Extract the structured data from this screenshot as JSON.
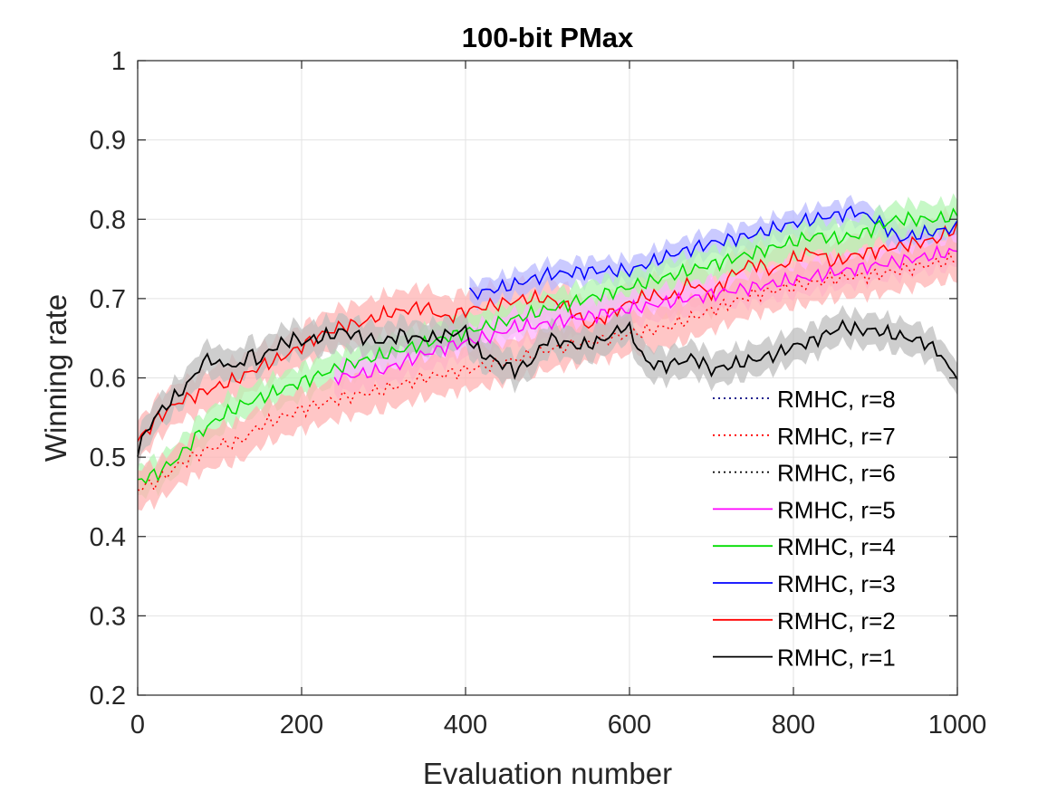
{
  "chart_data": {
    "type": "line",
    "title": "100-bit PMax",
    "xlabel": "Evaluation number",
    "ylabel": "Winning rate",
    "xlim": [
      0,
      1000
    ],
    "ylim": [
      0.2,
      1
    ],
    "xticks": [
      0,
      200,
      400,
      600,
      800,
      1000
    ],
    "yticks": [
      0.2,
      0.3,
      0.4,
      0.5,
      0.6,
      0.7,
      0.8,
      0.9,
      1
    ],
    "xtick_labels": [
      "0",
      "200",
      "400",
      "600",
      "800",
      "1000"
    ],
    "ytick_labels": [
      "0.2",
      "0.3",
      "0.4",
      "0.5",
      "0.6",
      "0.7",
      "0.8",
      "0.9",
      "1"
    ],
    "grid": true,
    "legend_position": "bottom-right",
    "series": [
      {
        "name": "RMHC, r=2",
        "color": "#ff0000",
        "band_color": "#ffb3b3",
        "style": "solid",
        "x": [
          0,
          25,
          50,
          75,
          100,
          125,
          150,
          175,
          200,
          225,
          250,
          275,
          300,
          325,
          350,
          375,
          400,
          425,
          450,
          475,
          500,
          525,
          550,
          575,
          600,
          625,
          650,
          675,
          700,
          725,
          750,
          775,
          800,
          825,
          850,
          875,
          900,
          925,
          950,
          975,
          1000
        ],
        "y": [
          0.52,
          0.55,
          0.57,
          0.58,
          0.59,
          0.6,
          0.615,
          0.625,
          0.64,
          0.655,
          0.665,
          0.67,
          0.68,
          0.685,
          0.69,
          0.675,
          0.685,
          0.69,
          0.695,
          0.7,
          0.7,
          0.69,
          0.665,
          0.68,
          0.695,
          0.705,
          0.7,
          0.72,
          0.705,
          0.73,
          0.745,
          0.735,
          0.75,
          0.76,
          0.745,
          0.755,
          0.76,
          0.765,
          0.77,
          0.775,
          0.79
        ],
        "band": 0.025
      },
      {
        "name": "RMHC, r=3",
        "color": "#0000ff",
        "band_color": "#b8b8ff",
        "style": "solid",
        "x": [
          405,
          450,
          500,
          550,
          600,
          650,
          700,
          750,
          800,
          850,
          875,
          900,
          930,
          950,
          1000
        ],
        "y": [
          0.705,
          0.715,
          0.73,
          0.735,
          0.735,
          0.755,
          0.77,
          0.78,
          0.795,
          0.805,
          0.81,
          0.8,
          0.775,
          0.78,
          0.79
        ],
        "band": 0.015
      },
      {
        "name": "RMHC, r=4",
        "color": "#00dd00",
        "band_color": "#b3f5b3",
        "style": "solid",
        "x": [
          0,
          25,
          50,
          75,
          100,
          125,
          150,
          175,
          200,
          225,
          250,
          830,
          850,
          880,
          900,
          925,
          950,
          975,
          1000
        ],
        "y": [
          0.47,
          0.48,
          0.5,
          0.53,
          0.55,
          0.565,
          0.575,
          0.585,
          0.595,
          0.605,
          0.615,
          0.78,
          0.775,
          0.78,
          0.79,
          0.8,
          0.8,
          0.8,
          0.805
        ],
        "band": 0.02
      },
      {
        "name": "RMHC, r=5",
        "color": "#ff00ff",
        "band_color": "#ffb3ff",
        "style": "solid",
        "x": [
          240,
          275,
          300,
          325,
          350,
          380,
          440,
          460,
          480,
          1000
        ],
        "y": [
          0.6,
          0.605,
          0.61,
          0.62,
          0.63,
          0.64,
          0.655,
          0.665,
          0.665,
          0.76
        ],
        "band": 0.02
      },
      {
        "name": "RMHC, r=7",
        "color": "#ff0000",
        "band_color": "#ffb3b3",
        "style": "dotted",
        "x": [
          0,
          25,
          50,
          75,
          100,
          125,
          150,
          200,
          250,
          300,
          350,
          400,
          450,
          500,
          550,
          600,
          650,
          700,
          750,
          800,
          850,
          900,
          950,
          1000
        ],
        "y": [
          0.46,
          0.47,
          0.49,
          0.505,
          0.515,
          0.52,
          0.54,
          0.56,
          0.575,
          0.585,
          0.6,
          0.61,
          0.62,
          0.635,
          0.645,
          0.655,
          0.665,
          0.685,
          0.705,
          0.715,
          0.725,
          0.73,
          0.74,
          0.75
        ],
        "band": 0.025
      },
      {
        "name": "RMHC, r=1",
        "color": "#000000",
        "band_color": "#bdbdbd",
        "style": "solid",
        "x": [
          0,
          10,
          20,
          30,
          40,
          50,
          60,
          70,
          80,
          90,
          100,
          110,
          120,
          130,
          140,
          150,
          160,
          170,
          180,
          190,
          200,
          220,
          240,
          250,
          260,
          280,
          300,
          320,
          340,
          360,
          380,
          400,
          410,
          420,
          430,
          440,
          450,
          460,
          480,
          500,
          520,
          540,
          560,
          580,
          590,
          600,
          610,
          620,
          640,
          660,
          680,
          700,
          720,
          740,
          760,
          780,
          800,
          820,
          840,
          860,
          880,
          900,
          920,
          940,
          960,
          980,
          990,
          1000
        ],
        "y": [
          0.51,
          0.53,
          0.55,
          0.56,
          0.57,
          0.58,
          0.59,
          0.605,
          0.62,
          0.625,
          0.615,
          0.62,
          0.61,
          0.625,
          0.63,
          0.62,
          0.635,
          0.64,
          0.645,
          0.65,
          0.645,
          0.65,
          0.655,
          0.66,
          0.655,
          0.65,
          0.645,
          0.655,
          0.65,
          0.65,
          0.655,
          0.66,
          0.64,
          0.63,
          0.625,
          0.62,
          0.615,
          0.61,
          0.62,
          0.65,
          0.645,
          0.64,
          0.645,
          0.655,
          0.665,
          0.66,
          0.64,
          0.62,
          0.615,
          0.62,
          0.625,
          0.61,
          0.615,
          0.62,
          0.625,
          0.63,
          0.64,
          0.645,
          0.655,
          0.665,
          0.66,
          0.66,
          0.655,
          0.65,
          0.645,
          0.63,
          0.61,
          0.605
        ],
        "band": 0.02
      }
    ],
    "legend": [
      {
        "label": "RMHC, r=8",
        "color": "#00007f",
        "style": "dotted"
      },
      {
        "label": "RMHC, r=7",
        "color": "#ff0000",
        "style": "dotted"
      },
      {
        "label": "RMHC, r=6",
        "color": "#000000",
        "style": "dotted"
      },
      {
        "label": "RMHC, r=5",
        "color": "#ff00ff",
        "style": "solid"
      },
      {
        "label": "RMHC, r=4",
        "color": "#00dd00",
        "style": "solid"
      },
      {
        "label": "RMHC, r=3",
        "color": "#0000ff",
        "style": "solid"
      },
      {
        "label": "RMHC, r=2",
        "color": "#ff0000",
        "style": "solid"
      },
      {
        "label": "RMHC, r=1",
        "color": "#000000",
        "style": "solid"
      }
    ]
  }
}
